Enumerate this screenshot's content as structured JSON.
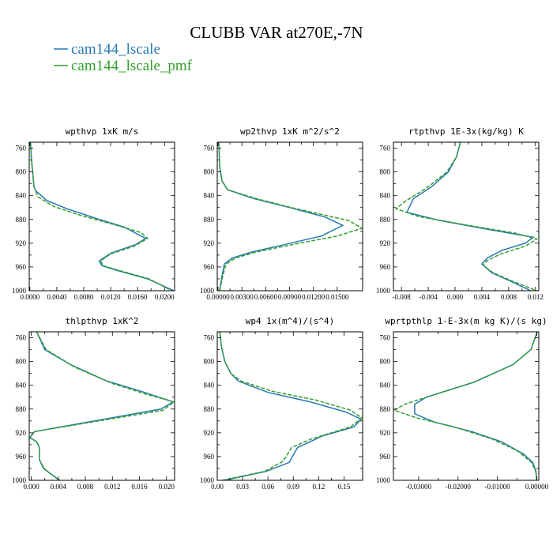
{
  "figure": {
    "title": "CLUBB VAR at270E,-7N"
  },
  "legend": [
    {
      "label": "cam144_lscale",
      "color": "#2878b4",
      "dash": "solid"
    },
    {
      "label": "cam144_lscale_pmf",
      "color": "#33a02c",
      "dash": "dashed"
    }
  ],
  "chart_data": [
    {
      "type": "line",
      "title": "wpthvp  1xK m/s",
      "xlim": [
        -0.0001,
        0.0215
      ],
      "ylim": [
        1000,
        750
      ],
      "xticks": [
        0.0,
        0.004,
        0.008,
        0.012,
        0.016,
        0.02
      ],
      "xticklabels": [
        "0.0000",
        "0.0040",
        "0.0080",
        "0.0120",
        "0.0160",
        "0.0200"
      ],
      "yticks": [
        760,
        800,
        840,
        880,
        920,
        960,
        1000
      ],
      "yticklabels": [
        "760",
        "800",
        "840",
        "880",
        "920",
        "960",
        "1000"
      ],
      "series": [
        {
          "name": "cam144_lscale",
          "points": [
            [
              0.0001,
              750
            ],
            [
              0.0002,
              775
            ],
            [
              0.0004,
              800
            ],
            [
              0.0006,
              825
            ],
            [
              0.0009,
              832
            ],
            [
              0.0025,
              848
            ],
            [
              0.0055,
              862
            ],
            [
              0.0095,
              877
            ],
            [
              0.014,
              893
            ],
            [
              0.0172,
              912
            ],
            [
              0.0158,
              922
            ],
            [
              0.012,
              937
            ],
            [
              0.0103,
              950
            ],
            [
              0.0107,
              958
            ],
            [
              0.013,
              966
            ],
            [
              0.0175,
              980
            ],
            [
              0.0214,
              1000
            ]
          ]
        },
        {
          "name": "cam144_lscale_pmf",
          "points": [
            [
              0.0001,
              750
            ],
            [
              0.0002,
              775
            ],
            [
              0.0004,
              800
            ],
            [
              0.0006,
              825
            ],
            [
              0.0012,
              842
            ],
            [
              0.0035,
              858
            ],
            [
              0.0075,
              873
            ],
            [
              0.0123,
              888
            ],
            [
              0.0165,
              902
            ],
            [
              0.0175,
              912
            ],
            [
              0.0155,
              925
            ],
            [
              0.012,
              938
            ],
            [
              0.0105,
              950
            ],
            [
              0.0109,
              958
            ],
            [
              0.0133,
              966
            ],
            [
              0.0177,
              980
            ],
            [
              0.0211,
              1000
            ]
          ]
        }
      ]
    },
    {
      "type": "line",
      "title": "wp2thvp  1xK m^2/s^2",
      "xlim": [
        -0.0001,
        0.0182
      ],
      "ylim": [
        1000,
        750
      ],
      "xticks": [
        0.0,
        0.003,
        0.006,
        0.009,
        0.012,
        0.015
      ],
      "xticklabels": [
        "0.00000",
        "0.00300",
        "0.00600",
        "0.00900",
        "0.01200",
        "0.01500"
      ],
      "yticks": [
        760,
        800,
        840,
        880,
        920,
        960,
        1000
      ],
      "yticklabels": [
        "760",
        "800",
        "840",
        "880",
        "920",
        "960",
        "1000"
      ],
      "series": [
        {
          "name": "cam144_lscale",
          "points": [
            [
              0.0001,
              750
            ],
            [
              0.0002,
              790
            ],
            [
              0.0005,
              815
            ],
            [
              0.0012,
              830
            ],
            [
              0.0045,
              845
            ],
            [
              0.009,
              860
            ],
            [
              0.0135,
              876
            ],
            [
              0.0157,
              890
            ],
            [
              0.013,
              908
            ],
            [
              0.0085,
              922
            ],
            [
              0.0042,
              935
            ],
            [
              0.0018,
              945
            ],
            [
              0.0008,
              955
            ],
            [
              0.0005,
              975
            ],
            [
              0.0002,
              1000
            ]
          ]
        },
        {
          "name": "cam144_lscale_pmf",
          "points": [
            [
              0.0001,
              750
            ],
            [
              0.0002,
              790
            ],
            [
              0.0005,
              815
            ],
            [
              0.0012,
              830
            ],
            [
              0.0048,
              845
            ],
            [
              0.0092,
              860
            ],
            [
              0.0138,
              874
            ],
            [
              0.0165,
              882
            ],
            [
              0.0181,
              895
            ],
            [
              0.015,
              908
            ],
            [
              0.0095,
              922
            ],
            [
              0.0048,
              935
            ],
            [
              0.0022,
              945
            ],
            [
              0.001,
              955
            ],
            [
              0.0006,
              975
            ],
            [
              0.0002,
              1000
            ]
          ]
        }
      ]
    },
    {
      "type": "line",
      "title": "rtpthvp  1E-3x(kg/kg) K",
      "xlim": [
        -0.0092,
        0.0125
      ],
      "ylim": [
        1000,
        750
      ],
      "xticks": [
        -0.008,
        -0.004,
        0.0,
        0.004,
        0.008,
        0.012
      ],
      "xticklabels": [
        "-0.008",
        "-0.004",
        "0.000",
        "0.004",
        "0.008",
        "0.012"
      ],
      "yticks": [
        760,
        800,
        840,
        880,
        920,
        960,
        1000
      ],
      "yticklabels": [
        "760",
        "800",
        "840",
        "880",
        "920",
        "960",
        "1000"
      ],
      "series": [
        {
          "name": "cam144_lscale",
          "points": [
            [
              0.0008,
              750
            ],
            [
              0.0002,
              775
            ],
            [
              -0.001,
              800
            ],
            [
              -0.0035,
              825
            ],
            [
              -0.0062,
              845
            ],
            [
              -0.0072,
              868
            ],
            [
              -0.0022,
              882
            ],
            [
              0.005,
              897
            ],
            [
              0.0117,
              910
            ],
            [
              0.0105,
              920
            ],
            [
              0.007,
              932
            ],
            [
              0.0048,
              945
            ],
            [
              0.004,
              955
            ],
            [
              0.0055,
              970
            ],
            [
              0.0085,
              985
            ],
            [
              0.0113,
              1000
            ]
          ]
        },
        {
          "name": "cam144_lscale_pmf",
          "points": [
            [
              0.0008,
              750
            ],
            [
              0.0002,
              775
            ],
            [
              -0.0012,
              800
            ],
            [
              -0.004,
              825
            ],
            [
              -0.0075,
              850
            ],
            [
              -0.0088,
              862
            ],
            [
              -0.0055,
              875
            ],
            [
              0.002,
              890
            ],
            [
              0.009,
              903
            ],
            [
              0.0122,
              913
            ],
            [
              0.0105,
              925
            ],
            [
              0.0068,
              938
            ],
            [
              0.0047,
              950
            ],
            [
              0.0042,
              957
            ],
            [
              0.0057,
              970
            ],
            [
              0.0088,
              985
            ],
            [
              0.0122,
              1000
            ]
          ]
        }
      ]
    },
    {
      "type": "line",
      "title": "thlpthvp  1xK^2",
      "xlim": [
        -0.0003,
        0.0212
      ],
      "ylim": [
        1000,
        750
      ],
      "xticks": [
        0.0,
        0.004,
        0.008,
        0.012,
        0.016,
        0.02
      ],
      "xticklabels": [
        "0.000",
        "0.004",
        "0.008",
        "0.012",
        "0.016",
        "0.020"
      ],
      "yticks": [
        760,
        800,
        840,
        880,
        920,
        960,
        1000
      ],
      "yticklabels": [
        "760",
        "800",
        "840",
        "880",
        "920",
        "960",
        "1000"
      ],
      "series": [
        {
          "name": "cam144_lscale",
          "points": [
            [
              0.0008,
              750
            ],
            [
              0.002,
              780
            ],
            [
              0.0058,
              805
            ],
            [
              0.011,
              832
            ],
            [
              0.0162,
              850
            ],
            [
              0.021,
              868
            ],
            [
              0.0192,
              880
            ],
            [
              0.0005,
              918
            ],
            [
              -0.0002,
              928
            ],
            [
              0.0008,
              935
            ],
            [
              0.0012,
              945
            ],
            [
              0.0012,
              965
            ],
            [
              0.0018,
              980
            ],
            [
              0.0042,
              1000
            ]
          ]
        },
        {
          "name": "cam144_lscale_pmf",
          "points": [
            [
              0.0008,
              750
            ],
            [
              0.0022,
              780
            ],
            [
              0.0065,
              810
            ],
            [
              0.012,
              837
            ],
            [
              0.017,
              855
            ],
            [
              0.0211,
              868
            ],
            [
              0.0195,
              882
            ],
            [
              0.0005,
              918
            ],
            [
              -0.0003,
              928
            ],
            [
              0.0008,
              935
            ],
            [
              0.0012,
              945
            ],
            [
              0.0012,
              965
            ],
            [
              0.0019,
              980
            ],
            [
              0.0041,
              1000
            ]
          ]
        }
      ]
    },
    {
      "type": "line",
      "title": "wp4  1x(m^4)/(s^4)",
      "xlim": [
        0.0,
        0.172
      ],
      "ylim": [
        1000,
        750
      ],
      "xticks": [
        0.0,
        0.03,
        0.06,
        0.09,
        0.12,
        0.15
      ],
      "xticklabels": [
        "0.00",
        "0.03",
        "0.06",
        "0.09",
        "0.12",
        "0.15"
      ],
      "yticks": [
        760,
        800,
        840,
        880,
        920,
        960,
        1000
      ],
      "yticklabels": [
        "760",
        "800",
        "840",
        "880",
        "920",
        "960",
        "1000"
      ],
      "series": [
        {
          "name": "cam144_lscale",
          "points": [
            [
              0.003,
              750
            ],
            [
              0.005,
              775
            ],
            [
              0.009,
              800
            ],
            [
              0.016,
              820
            ],
            [
              0.025,
              833
            ],
            [
              0.06,
              852
            ],
            [
              0.11,
              868
            ],
            [
              0.152,
              885
            ],
            [
              0.17,
              897
            ],
            [
              0.162,
              910
            ],
            [
              0.125,
              925
            ],
            [
              0.095,
              945
            ],
            [
              0.085,
              970
            ],
            [
              0.058,
              985
            ],
            [
              0.008,
              1000
            ]
          ]
        },
        {
          "name": "cam144_lscale_pmf",
          "points": [
            [
              0.003,
              750
            ],
            [
              0.005,
              775
            ],
            [
              0.009,
              800
            ],
            [
              0.016,
              820
            ],
            [
              0.028,
              833
            ],
            [
              0.065,
              850
            ],
            [
              0.117,
              865
            ],
            [
              0.158,
              882
            ],
            [
              0.171,
              895
            ],
            [
              0.158,
              910
            ],
            [
              0.112,
              930
            ],
            [
              0.088,
              945
            ],
            [
              0.078,
              968
            ],
            [
              0.056,
              985
            ],
            [
              0.006,
              1000
            ]
          ]
        }
      ]
    },
    {
      "type": "line",
      "title": "wprtpthlp  1-E-3x(m kg K)/(s kg)",
      "xlim": [
        -0.0364,
        0.0005
      ],
      "ylim": [
        1000,
        750
      ],
      "xticks": [
        -0.03,
        -0.02,
        -0.01,
        0.0
      ],
      "xticklabels": [
        "-0.03000",
        "-0.02000",
        "-0.01000",
        "0.00000"
      ],
      "yticks": [
        760,
        800,
        840,
        880,
        920,
        960,
        1000
      ],
      "yticklabels": [
        "760",
        "800",
        "840",
        "880",
        "920",
        "960",
        "1000"
      ],
      "series": [
        {
          "name": "cam144_lscale",
          "points": [
            [
              0.0001,
              750
            ],
            [
              -0.0015,
              780
            ],
            [
              -0.006,
              805
            ],
            [
              -0.016,
              835
            ],
            [
              -0.028,
              860
            ],
            [
              -0.031,
              872
            ],
            [
              -0.031,
              888
            ],
            [
              -0.026,
              902
            ],
            [
              -0.0165,
              918
            ],
            [
              -0.009,
              935
            ],
            [
              -0.0035,
              955
            ],
            [
              -0.001,
              970
            ],
            [
              -0.0002,
              985
            ],
            [
              0.0,
              1000
            ]
          ]
        },
        {
          "name": "cam144_lscale_pmf",
          "points": [
            [
              0.0001,
              750
            ],
            [
              -0.0015,
              780
            ],
            [
              -0.006,
              805
            ],
            [
              -0.016,
              835
            ],
            [
              -0.028,
              860
            ],
            [
              -0.0335,
              872
            ],
            [
              -0.0362,
              882
            ],
            [
              -0.0305,
              895
            ],
            [
              -0.021,
              910
            ],
            [
              -0.0115,
              930
            ],
            [
              -0.005,
              950
            ],
            [
              -0.0013,
              970
            ],
            [
              -0.0003,
              985
            ],
            [
              0.0,
              1000
            ]
          ]
        }
      ]
    }
  ]
}
